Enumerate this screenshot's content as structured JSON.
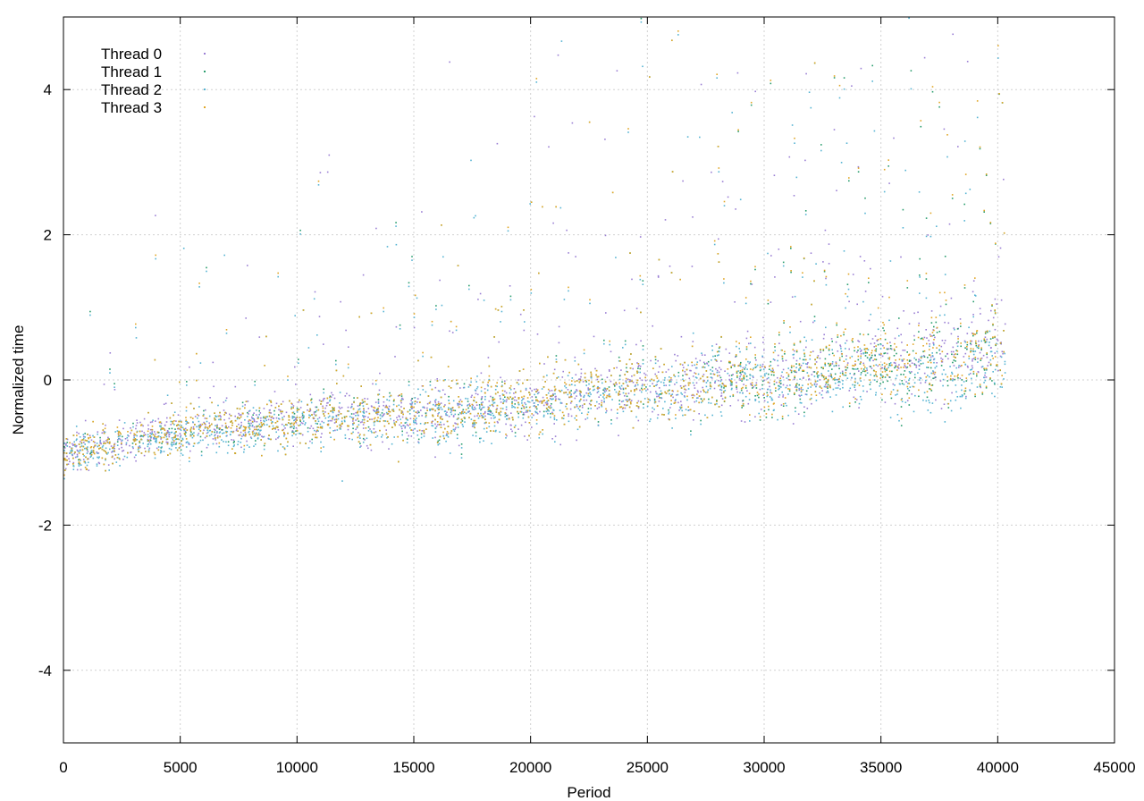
{
  "chart_data": {
    "type": "scatter",
    "title": "",
    "xlabel": "Period",
    "ylabel": "Normalized time",
    "xlim": [
      0,
      45000
    ],
    "ylim": [
      -5,
      5
    ],
    "xticks": [
      0,
      5000,
      10000,
      15000,
      20000,
      25000,
      30000,
      35000,
      40000,
      45000
    ],
    "yticks": [
      -4,
      -2,
      0,
      2,
      4
    ],
    "grid": true,
    "legend_position": "top-left",
    "series": [
      {
        "name": "Thread 0",
        "color": "#9b7fd4",
        "trend": [
          [
            0,
            -1.0
          ],
          [
            2000,
            -0.9
          ],
          [
            4000,
            -0.75
          ],
          [
            6000,
            -0.65
          ],
          [
            8000,
            -0.6
          ],
          [
            10000,
            -0.55
          ],
          [
            12000,
            -0.5
          ],
          [
            14000,
            -0.5
          ],
          [
            16000,
            -0.45
          ],
          [
            18000,
            -0.4
          ],
          [
            20000,
            -0.3
          ],
          [
            22000,
            -0.2
          ],
          [
            24000,
            -0.1
          ],
          [
            26000,
            -0.05
          ],
          [
            28000,
            0.0
          ],
          [
            30000,
            0.05
          ],
          [
            32000,
            0.1
          ],
          [
            34000,
            0.2
          ],
          [
            36000,
            0.3
          ],
          [
            38000,
            0.35
          ],
          [
            40300,
            0.4
          ]
        ]
      },
      {
        "name": "Thread 1",
        "color": "#2a9d6e",
        "trend": [
          [
            0,
            -1.0
          ],
          [
            2000,
            -0.9
          ],
          [
            4000,
            -0.75
          ],
          [
            6000,
            -0.65
          ],
          [
            8000,
            -0.6
          ],
          [
            10000,
            -0.55
          ],
          [
            12000,
            -0.5
          ],
          [
            14000,
            -0.5
          ],
          [
            16000,
            -0.45
          ],
          [
            18000,
            -0.4
          ],
          [
            20000,
            -0.3
          ],
          [
            22000,
            -0.2
          ],
          [
            24000,
            -0.1
          ],
          [
            26000,
            -0.1
          ],
          [
            28000,
            0.0
          ],
          [
            30000,
            0.0
          ],
          [
            32000,
            0.1
          ],
          [
            34000,
            0.2
          ],
          [
            36000,
            0.25
          ],
          [
            38000,
            0.3
          ],
          [
            40300,
            0.35
          ]
        ]
      },
      {
        "name": "Thread 2",
        "color": "#56b4d3",
        "trend": [
          [
            0,
            -1.05
          ],
          [
            2000,
            -0.95
          ],
          [
            4000,
            -0.8
          ],
          [
            6000,
            -0.7
          ],
          [
            8000,
            -0.65
          ],
          [
            10000,
            -0.6
          ],
          [
            12000,
            -0.55
          ],
          [
            14000,
            -0.55
          ],
          [
            16000,
            -0.5
          ],
          [
            18000,
            -0.45
          ],
          [
            20000,
            -0.35
          ],
          [
            22000,
            -0.25
          ],
          [
            24000,
            -0.15
          ],
          [
            26000,
            -0.15
          ],
          [
            28000,
            -0.05
          ],
          [
            30000,
            -0.05
          ],
          [
            32000,
            0.05
          ],
          [
            34000,
            0.0
          ],
          [
            36000,
            0.0
          ],
          [
            38000,
            0.05
          ],
          [
            40300,
            0.2
          ]
        ]
      },
      {
        "name": "Thread 3",
        "color": "#e0a626",
        "trend": [
          [
            0,
            -1.0
          ],
          [
            2000,
            -0.9
          ],
          [
            4000,
            -0.75
          ],
          [
            6000,
            -0.65
          ],
          [
            8000,
            -0.6
          ],
          [
            10000,
            -0.55
          ],
          [
            12000,
            -0.5
          ],
          [
            14000,
            -0.5
          ],
          [
            16000,
            -0.45
          ],
          [
            18000,
            -0.4
          ],
          [
            20000,
            -0.3
          ],
          [
            22000,
            -0.2
          ],
          [
            24000,
            -0.1
          ],
          [
            26000,
            -0.1
          ],
          [
            28000,
            0.0
          ],
          [
            30000,
            0.05
          ],
          [
            32000,
            0.1
          ],
          [
            34000,
            0.25
          ],
          [
            36000,
            0.35
          ],
          [
            38000,
            0.35
          ],
          [
            40300,
            0.35
          ]
        ]
      }
    ]
  }
}
